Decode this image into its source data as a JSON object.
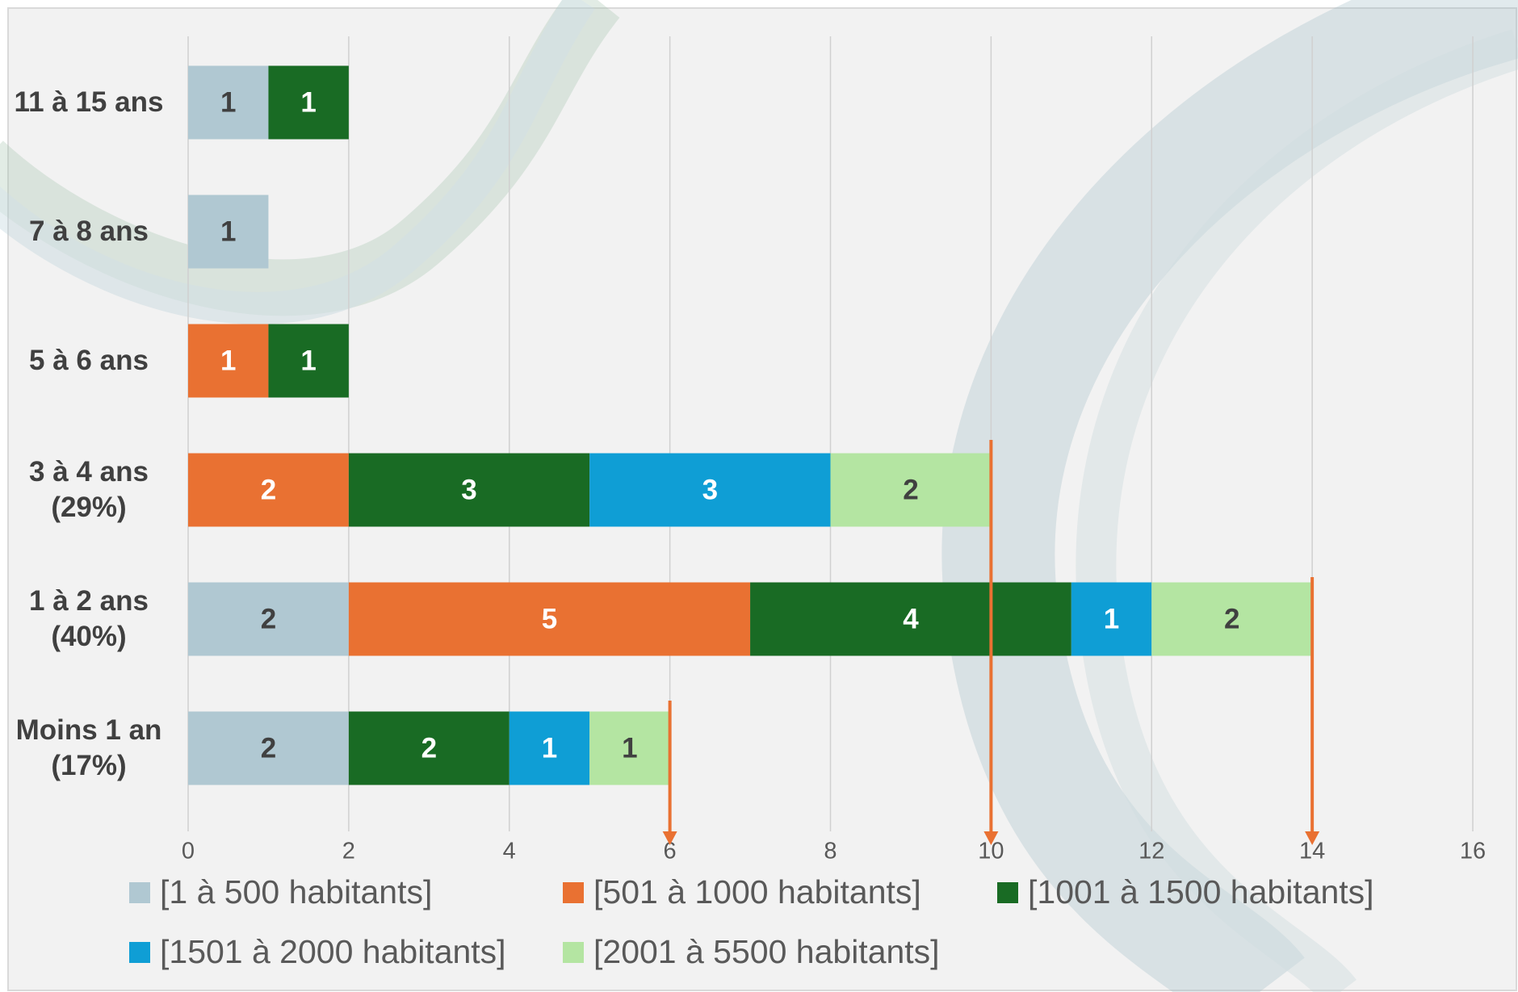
{
  "chart_data": {
    "type": "stacked_bar_horizontal",
    "categories": [
      "11 à 15 ans",
      "7 à 8 ans",
      "5 à 6 ans",
      "3 à 4 ans (29%)",
      "1 à 2 ans (40%)",
      "Moins 1 an (17%)"
    ],
    "series": [
      {
        "name": "[1 à 500 habitants]",
        "color": "#b0c8d2",
        "label_color": "#404040",
        "values": [
          1,
          1,
          null,
          null,
          2,
          2
        ]
      },
      {
        "name": "[501 à 1000 habitants]",
        "color": "#e97132",
        "label_color": "#ffffff",
        "values": [
          null,
          null,
          1,
          2,
          5,
          null
        ]
      },
      {
        "name": "[1001 à 1500 habitants]",
        "color": "#196b24",
        "label_color": "#ffffff",
        "values": [
          1,
          null,
          1,
          3,
          4,
          2
        ]
      },
      {
        "name": "[1501 à 2000 habitants]",
        "color": "#0f9ed5",
        "label_color": "#ffffff",
        "values": [
          null,
          null,
          null,
          3,
          1,
          1
        ]
      },
      {
        "name": "[2001 à 5500 habitants]",
        "color": "#b4e5a2",
        "label_color": "#404040",
        "values": [
          null,
          null,
          null,
          2,
          2,
          1
        ]
      }
    ],
    "total_markers": [
      6,
      10,
      14
    ],
    "marker_color": "#e97132",
    "xlim": [
      0,
      16
    ],
    "xticks": [
      0,
      2,
      4,
      6,
      8,
      10,
      12,
      14,
      16
    ],
    "grid": true
  }
}
